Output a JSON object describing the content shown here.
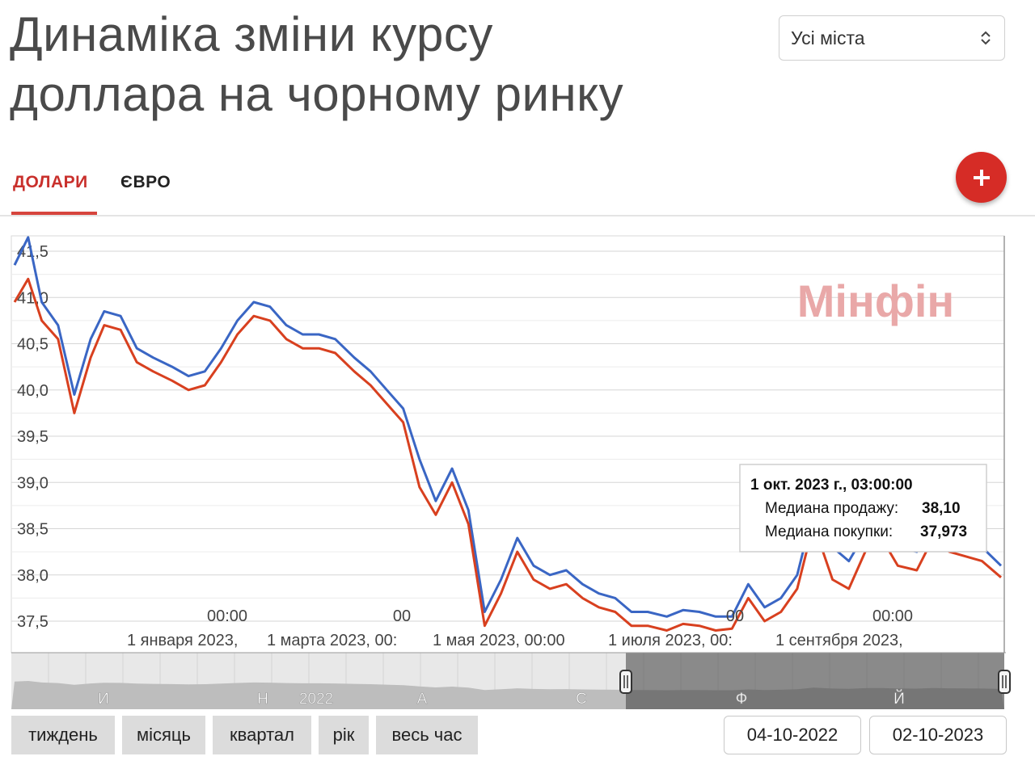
{
  "header": {
    "title_line1": "Динаміка зміни курсу",
    "title_line2": "доллара на чорному ринку",
    "city_select": "Усі міста"
  },
  "tabs": [
    {
      "label": "ДОЛАРИ",
      "active": true
    },
    {
      "label": "ЄВРО",
      "active": false
    }
  ],
  "icons": {
    "add": "plus-icon",
    "select": "chevron-up-down-icon"
  },
  "colors": {
    "accent": "#d6453d",
    "sell_line": "#3a66c4",
    "buy_line": "#d8401f",
    "watermark": "#e9a8a8"
  },
  "chart_data": {
    "type": "line",
    "watermark": "Мінфін",
    "y_ticks": [
      "41,5",
      "41,0",
      "40,5",
      "40,0",
      "39,5",
      "39,0",
      "38,5",
      "38,0",
      "37,5"
    ],
    "ylim": [
      37.5,
      41.5
    ],
    "x_labels_top": [
      "00:00",
      "00",
      "00",
      "00:00"
    ],
    "x_labels_bottom": [
      "1 января 2023,",
      "1 марта 2023, 00:",
      "1 мая 2023, 00:00",
      "1 июля 2023, 00:",
      "1 сентября 2023,"
    ],
    "x": [
      "2022-10-04",
      "2022-10-09",
      "2022-10-14",
      "2022-10-20",
      "2022-10-26",
      "2022-11-01",
      "2022-11-06",
      "2022-11-12",
      "2022-11-18",
      "2022-11-24",
      "2022-12-01",
      "2022-12-07",
      "2022-12-13",
      "2022-12-19",
      "2022-12-25",
      "2022-12-31",
      "2023-01-06",
      "2023-01-12",
      "2023-01-18",
      "2023-01-24",
      "2023-01-30",
      "2023-02-06",
      "2023-02-12",
      "2023-02-18",
      "2023-02-24",
      "2023-03-02",
      "2023-03-08",
      "2023-03-14",
      "2023-03-20",
      "2023-03-26",
      "2023-04-01",
      "2023-04-07",
      "2023-04-13",
      "2023-04-19",
      "2023-04-25",
      "2023-05-01",
      "2023-05-07",
      "2023-05-13",
      "2023-05-19",
      "2023-05-25",
      "2023-06-01",
      "2023-06-07",
      "2023-06-13",
      "2023-06-19",
      "2023-06-25",
      "2023-07-01",
      "2023-07-07",
      "2023-07-13",
      "2023-07-19",
      "2023-07-25",
      "2023-08-01",
      "2023-08-07",
      "2023-08-13",
      "2023-08-19",
      "2023-08-25",
      "2023-09-01",
      "2023-09-07",
      "2023-09-13",
      "2023-09-19",
      "2023-09-25",
      "2023-10-02"
    ],
    "series": [
      {
        "name": "Медиана продажу",
        "values": [
          41.35,
          41.65,
          40.95,
          40.7,
          39.95,
          40.55,
          40.85,
          40.8,
          40.45,
          40.35,
          40.25,
          40.15,
          40.2,
          40.45,
          40.75,
          40.95,
          40.9,
          40.7,
          40.6,
          40.6,
          40.55,
          40.35,
          40.2,
          40.0,
          39.8,
          39.25,
          38.8,
          39.15,
          38.7,
          37.6,
          37.95,
          38.4,
          38.1,
          38.0,
          38.05,
          37.9,
          37.8,
          37.75,
          37.6,
          37.6,
          37.55,
          37.62,
          37.6,
          37.55,
          37.55,
          37.9,
          37.65,
          37.75,
          38.0,
          38.7,
          38.3,
          38.15,
          38.45,
          38.55,
          38.3,
          38.25,
          38.55,
          38.4,
          38.35,
          38.3,
          38.1
        ]
      },
      {
        "name": "Медиана покупки",
        "values": [
          40.95,
          41.2,
          40.75,
          40.55,
          39.75,
          40.35,
          40.7,
          40.65,
          40.3,
          40.2,
          40.1,
          40.0,
          40.05,
          40.3,
          40.6,
          40.8,
          40.75,
          40.55,
          40.45,
          40.45,
          40.4,
          40.2,
          40.05,
          39.85,
          39.65,
          38.95,
          38.65,
          39.0,
          38.55,
          37.45,
          37.8,
          38.25,
          37.95,
          37.85,
          37.9,
          37.75,
          37.65,
          37.6,
          37.45,
          37.45,
          37.4,
          37.47,
          37.45,
          37.4,
          37.42,
          37.75,
          37.5,
          37.6,
          37.85,
          38.55,
          37.95,
          37.85,
          38.25,
          38.4,
          38.1,
          38.05,
          38.4,
          38.25,
          38.2,
          38.15,
          37.973
        ]
      }
    ],
    "tooltip": {
      "title": "1 окт. 2023 г., 03:00:00",
      "sell_label": "Медиана продажу:",
      "sell_value": "38,10",
      "buy_label": "Медиана покупки:",
      "buy_value": "37,973"
    },
    "navigator_labels": [
      "И",
      "Н",
      "2022",
      "А",
      "С",
      "Ф",
      "Й"
    ]
  },
  "range_buttons": [
    "тиждень",
    "місяць",
    "квартал",
    "рік",
    "весь час"
  ],
  "date_from": "04-10-2022",
  "date_to": "02-10-2023"
}
